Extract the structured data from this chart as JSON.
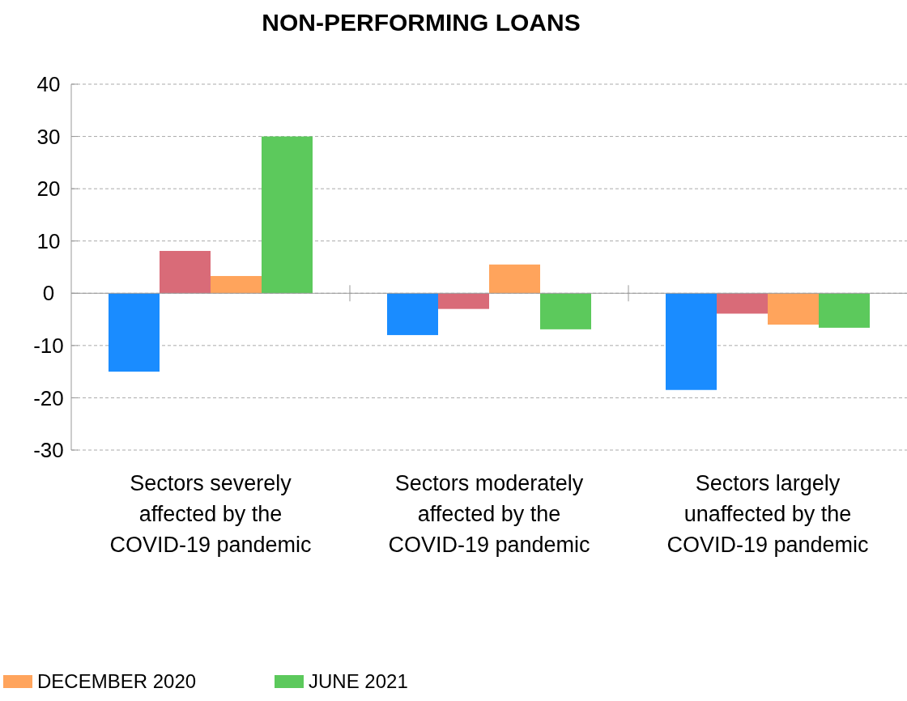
{
  "chart_data": {
    "type": "bar",
    "title": "NON-PERFORMING LOANS",
    "categories": [
      "Sectors severely affected by the COVID-19 pandemic",
      "Sectors moderately affected by the COVID-19 pandemic",
      "Sectors largely unaffected by the COVID-19 pandemic"
    ],
    "series": [
      {
        "color": "#1a8cff",
        "values": [
          -15,
          -8,
          -18.5
        ]
      },
      {
        "color": "#d96b78",
        "values": [
          8.1,
          -3,
          -3.9
        ]
      },
      {
        "name": "DECEMBER 2020",
        "color": "#ffa45c",
        "values": [
          3.3,
          5.5,
          -6
        ]
      },
      {
        "name": "JUNE 2021",
        "color": "#5cc95c",
        "values": [
          30,
          -6.9,
          -6.6
        ]
      }
    ],
    "ylim": [
      -30,
      40
    ],
    "yticks": [
      -30,
      -20,
      -10,
      0,
      10,
      20,
      30,
      40
    ],
    "grid": "y",
    "legend": "bottom"
  }
}
